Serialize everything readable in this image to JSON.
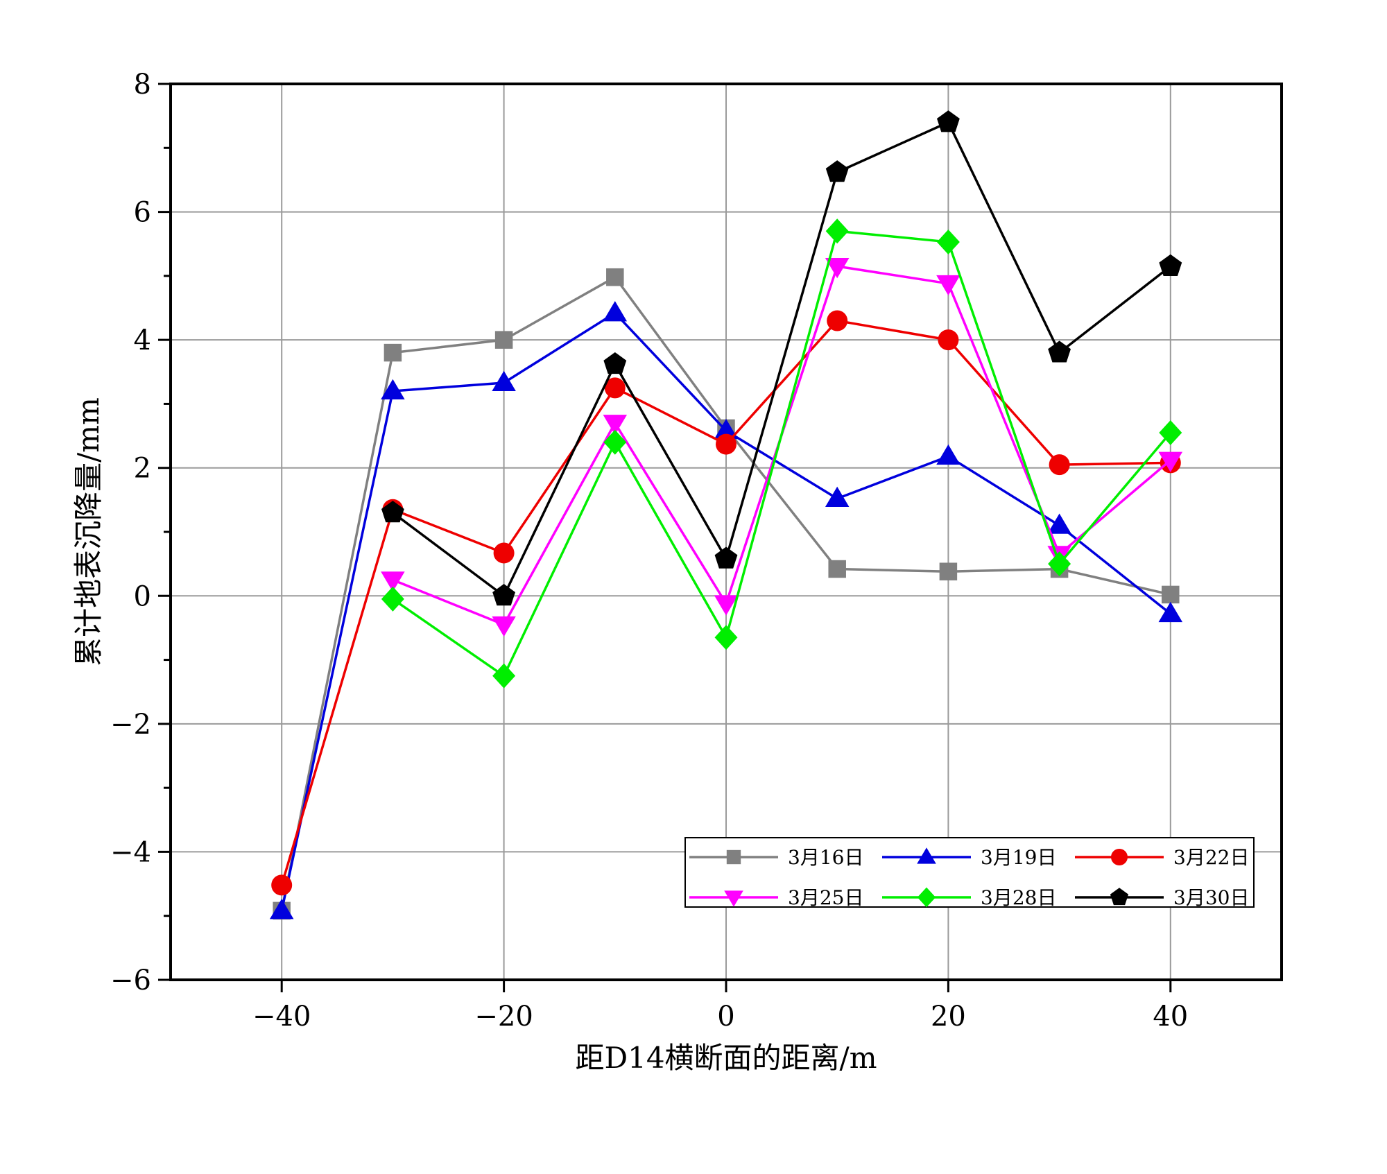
{
  "chart_data": {
    "type": "line",
    "xlabel": "距D14横断面的距离/m",
    "ylabel": "累计地表沉降量/mm",
    "xlim": [
      -50,
      50
    ],
    "ylim": [
      -6,
      8
    ],
    "xticks": [
      -40,
      -20,
      0,
      20,
      40
    ],
    "xtick_labels": [
      "−40",
      "−20",
      "0",
      "20",
      "40"
    ],
    "yticks": [
      -6,
      -4,
      -2,
      0,
      2,
      4,
      6,
      8
    ],
    "ytick_labels": [
      "−6",
      "−4",
      "−2",
      "0",
      "2",
      "4",
      "6",
      "8"
    ],
    "grid": true,
    "legend_position": "bottom-right",
    "x": [
      -40,
      -30,
      -20,
      -10,
      0,
      10,
      20,
      30,
      40
    ],
    "series": [
      {
        "name": "3月16日",
        "color": "#808080",
        "marker": "square",
        "values": [
          -4.92,
          3.8,
          4.0,
          4.98,
          2.62,
          0.42,
          0.38,
          0.42,
          0.02
        ]
      },
      {
        "name": "3月19日",
        "color": "#0000dd",
        "marker": "triangle-up",
        "values": [
          -4.92,
          3.2,
          3.33,
          4.42,
          2.58,
          1.52,
          2.18,
          1.1,
          -0.28
        ]
      },
      {
        "name": "3月22日",
        "color": "#ee0000",
        "marker": "circle",
        "values": [
          -4.52,
          1.35,
          0.67,
          3.25,
          2.37,
          4.3,
          4.0,
          2.05,
          2.08
        ]
      },
      {
        "name": "3月25日",
        "color": "#ff00ff",
        "marker": "triangle-down",
        "values": [
          null,
          0.25,
          -0.45,
          2.7,
          -0.12,
          5.15,
          4.88,
          0.65,
          2.12
        ]
      },
      {
        "name": "3月28日",
        "color": "#00ee00",
        "marker": "diamond",
        "values": [
          null,
          -0.05,
          -1.25,
          2.4,
          -0.65,
          5.7,
          5.53,
          0.5,
          2.55
        ]
      },
      {
        "name": "3月30日",
        "color": "#000000",
        "marker": "pentagon",
        "values": [
          null,
          1.3,
          0.0,
          3.62,
          0.58,
          6.62,
          7.4,
          3.8,
          5.15
        ]
      }
    ]
  }
}
